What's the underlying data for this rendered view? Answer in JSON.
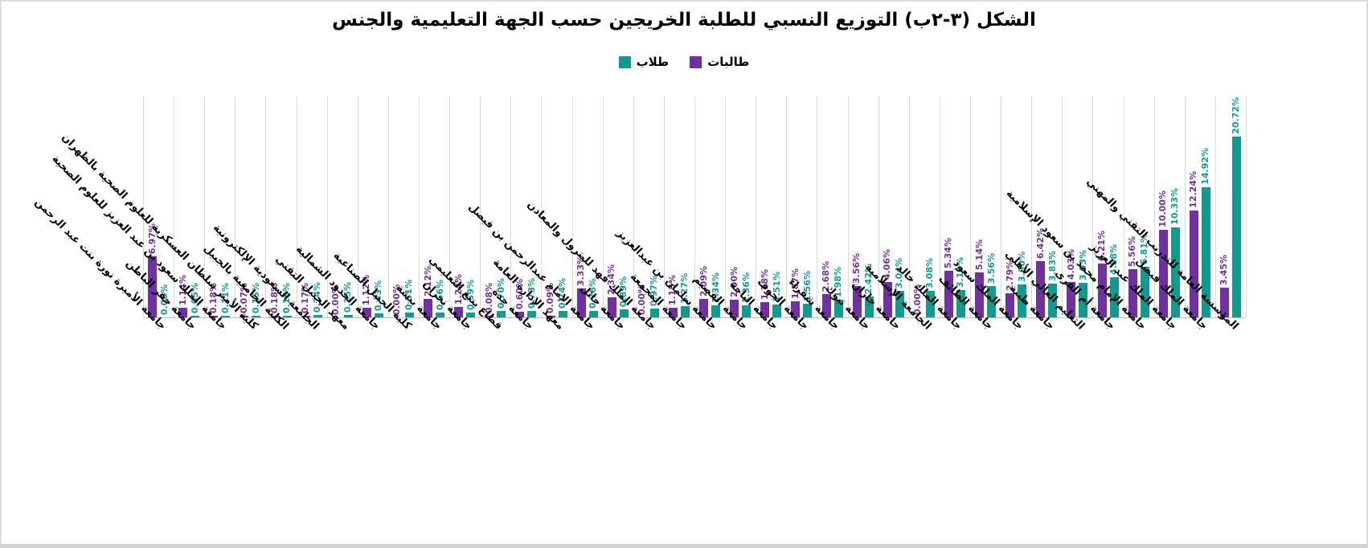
{
  "title": "الشكل (٣-٢ب) التوزيع النسبي للطلبة الخريجين حسب الجهة التعليمية والجنس",
  "legend": [
    {
      "label": "طلاب",
      "color": "#0f9b8e"
    },
    {
      "label": "طالبات",
      "color": "#7030a0"
    }
  ],
  "colors": {
    "males_teal": "#0f9b8e",
    "females_purple": "#7030a0",
    "gridline": "#d9d9d9",
    "axis_line": "#bfbfbf",
    "title_text": "#000000"
  },
  "chart_data": {
    "type": "bar",
    "title": "الشكل (٣-٢ب) التوزيع النسبي للطلبة الخريجين حسب الجهة التعليمية والجنس",
    "xlabel": "",
    "ylabel": "",
    "value_suffix": "%",
    "ylim": [
      0,
      25
    ],
    "grid": "vertical-category-separators-only",
    "legend_position": "top-center",
    "bar_value_labels": "rotated-90-above-bars",
    "category_label_style": "rotated-45",
    "categories": [
      "جامعة الأميرة نورة بنت عبد الرحمن",
      "جامعة حفر الباطن",
      "جامعة الملك سعود بن عبد العزيز للعلوم الصحية",
      "كلية الأمير سلطان العسكرية للعلوم الصحية بالظهران",
      "الكلية الجامعية بالجبيل",
      "الجامعة السعودية الإلكترونية",
      "معهد الجبيل التقني",
      "جامعة الحدود الشمالية",
      "كلية الجبيل الصناعية",
      "جامعة بيشة",
      "جامعة نجران",
      "قطاع ينبع التعليمي",
      "جامعة جدة",
      "معهد الإدارة العامة",
      "جامعة الإمام عبدالرحمن بن فيصل",
      "جامعة حائل",
      "جامعة الملك فهد للبترول والمعادن",
      "جامعة المجمعة",
      "جامعة سلمان بن عبدالعزيز",
      "جامعة القصيم",
      "جامعة الباحة",
      "جامعة الجوف",
      "جامعة شقراء",
      "جامعة تبوك",
      "جامعة جازان",
      "الجامعة الإسلامية",
      "جامعة الملك خالد",
      "جامعة الطائف",
      "جامعة الملك سعود",
      "جامعة طيبة",
      "التعليم العالي الأهلي",
      "جامعة أم القرى",
      "جامعة الإمام محمد بن سعود الإسلامية",
      "جامعة الملك عبد العزيز",
      "جامعة الملك فيصل",
      "المؤسسة العامة للتدريب التقني والمهني"
    ],
    "series": [
      {
        "name": "طالبات",
        "color": "#7030a0",
        "values": [
          6.97,
          1.14,
          0.18,
          0.07,
          0.18,
          0.17,
          0.0,
          1.12,
          0.0,
          2.12,
          1.24,
          0.08,
          0.6,
          0.09,
          3.33,
          2.34,
          0.0,
          1.15,
          2.09,
          2.0,
          1.78,
          1.87,
          2.68,
          3.56,
          4.06,
          0.0,
          5.34,
          5.14,
          2.79,
          6.42,
          4.03,
          6.21,
          5.56,
          10.0,
          12.24,
          3.45
        ]
      },
      {
        "name": "طلاب",
        "color": "#0f9b8e",
        "values": [
          0.0,
          0.05,
          0.11,
          0.15,
          0.15,
          0.24,
          0.25,
          0.43,
          0.51,
          0.56,
          0.59,
          0.7,
          0.73,
          0.74,
          0.76,
          0.89,
          0.97,
          1.27,
          1.34,
          1.36,
          1.51,
          1.56,
          1.98,
          2.42,
          3.04,
          3.08,
          3.13,
          3.56,
          3.8,
          3.83,
          3.93,
          4.58,
          5.81,
          10.33,
          14.92,
          20.72
        ]
      }
    ]
  }
}
